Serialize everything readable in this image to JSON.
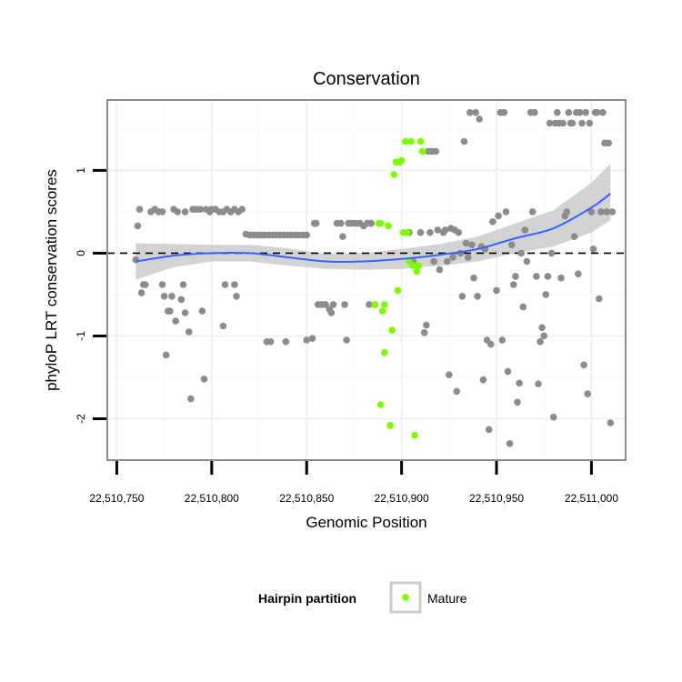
{
  "chart_data": {
    "type": "scatter",
    "title": "Conservation",
    "xlabel": "Genomic Position",
    "ylabel": "phyloP LRT conservation scores",
    "xlim": [
      22510745,
      22511018
    ],
    "ylim": [
      -2.5,
      1.85
    ],
    "x_ticks": [
      {
        "value": 22510750,
        "label": "22,510,750"
      },
      {
        "value": 22510800,
        "label": "22,510,800"
      },
      {
        "value": 22510850,
        "label": "22,510,850"
      },
      {
        "value": 22510900,
        "label": "22,510,900"
      },
      {
        "value": 22510950,
        "label": "22,510,950"
      },
      {
        "value": 22511000,
        "label": "22,511,000"
      }
    ],
    "y_ticks": [
      {
        "value": -2,
        "label": "-2"
      },
      {
        "value": -1,
        "label": "-1"
      },
      {
        "value": 0,
        "label": "0"
      },
      {
        "value": 1,
        "label": "1"
      }
    ],
    "grid": true,
    "reference_line": {
      "y": 0,
      "style": "dashed"
    },
    "legend": {
      "title": "Hairpin partition",
      "position": "bottom",
      "entries": [
        "Mature"
      ]
    },
    "colors": {
      "other": "#8c8c8c",
      "mature": "#7cfc00",
      "smooth": "#3366ff",
      "band": "#c8c8c8",
      "panel_border": "#8c8c8c"
    },
    "series": [
      {
        "name": "",
        "color": "#8c8c8c",
        "points": [
          [
            22510760,
            -0.08
          ],
          [
            22510761,
            0.33
          ],
          [
            22510762,
            0.53
          ],
          [
            22510763,
            -0.48
          ],
          [
            22510764,
            -0.38
          ],
          [
            22510765,
            -0.38
          ],
          [
            22510768,
            0.5
          ],
          [
            22510770,
            0.53
          ],
          [
            22510772,
            0.5
          ],
          [
            22510774,
            -0.38
          ],
          [
            22510774,
            0.5
          ],
          [
            22510775,
            -0.52
          ],
          [
            22510776,
            -1.23
          ],
          [
            22510777,
            -0.7
          ],
          [
            22510778,
            -0.7
          ],
          [
            22510779,
            -0.52
          ],
          [
            22510780,
            0.53
          ],
          [
            22510781,
            -0.82
          ],
          [
            22510782,
            0.5
          ],
          [
            22510784,
            -0.56
          ],
          [
            22510785,
            -0.38
          ],
          [
            22510786,
            0.5
          ],
          [
            22510786,
            -0.72
          ],
          [
            22510788,
            -0.95
          ],
          [
            22510789,
            -1.76
          ],
          [
            22510790,
            0.53
          ],
          [
            22510792,
            0.53
          ],
          [
            22510794,
            0.53
          ],
          [
            22510795,
            -0.7
          ],
          [
            22510796,
            -1.52
          ],
          [
            22510797,
            0.53
          ],
          [
            22510799,
            0.5
          ],
          [
            22510800,
            0.53
          ],
          [
            22510802,
            0.53
          ],
          [
            22510804,
            0.5
          ],
          [
            22510806,
            -0.88
          ],
          [
            22510806,
            0.5
          ],
          [
            22510807,
            -0.38
          ],
          [
            22510808,
            0.53
          ],
          [
            22510810,
            0.5
          ],
          [
            22510812,
            -0.38
          ],
          [
            22510812,
            0.53
          ],
          [
            22510813,
            -0.52
          ],
          [
            22510814,
            0.5
          ],
          [
            22510816,
            0.53
          ],
          [
            22510818,
            0.23
          ],
          [
            22510820,
            0.22
          ],
          [
            22510822,
            0.22
          ],
          [
            22510824,
            0.22
          ],
          [
            22510826,
            0.22
          ],
          [
            22510828,
            0.22
          ],
          [
            22510829,
            -1.07
          ],
          [
            22510830,
            0.22
          ],
          [
            22510831,
            -1.07
          ],
          [
            22510832,
            0.22
          ],
          [
            22510834,
            0.22
          ],
          [
            22510836,
            0.22
          ],
          [
            22510838,
            0.22
          ],
          [
            22510839,
            -1.07
          ],
          [
            22510840,
            0.22
          ],
          [
            22510842,
            0.22
          ],
          [
            22510844,
            0.22
          ],
          [
            22510846,
            0.22
          ],
          [
            22510848,
            0.22
          ],
          [
            22510850,
            -1.05
          ],
          [
            22510850,
            0.22
          ],
          [
            22510853,
            -1.03
          ],
          [
            22510854,
            0.36
          ],
          [
            22510855,
            0.36
          ],
          [
            22510856,
            -0.62
          ],
          [
            22510858,
            -0.62
          ],
          [
            22510860,
            -0.62
          ],
          [
            22510862,
            -0.68
          ],
          [
            22510863,
            -0.72
          ],
          [
            22510864,
            -0.62
          ],
          [
            22510866,
            0.36
          ],
          [
            22510868,
            0.36
          ],
          [
            22510869,
            0.2
          ],
          [
            22510870,
            -0.62
          ],
          [
            22510871,
            -1.05
          ],
          [
            22510872,
            0.36
          ],
          [
            22510874,
            0.36
          ],
          [
            22510876,
            0.36
          ],
          [
            22510878,
            0.36
          ],
          [
            22510880,
            0.33
          ],
          [
            22510882,
            0.36
          ],
          [
            22510883,
            -0.62
          ],
          [
            22510884,
            0.36
          ],
          [
            22510886,
            -0.62
          ],
          [
            22510904,
            0.25
          ],
          [
            22510906,
            -0.1
          ],
          [
            22510910,
            0.25
          ],
          [
            22510912,
            -0.96
          ],
          [
            22510913,
            -0.87
          ],
          [
            22510914,
            1.23
          ],
          [
            22510915,
            0.25
          ],
          [
            22510916,
            1.23
          ],
          [
            22510917,
            -0.1
          ],
          [
            22510918,
            1.23
          ],
          [
            22510919,
            0.28
          ],
          [
            22510920,
            -0.2
          ],
          [
            22510922,
            0.25
          ],
          [
            22510923,
            0.28
          ],
          [
            22510924,
            -0.1
          ],
          [
            22510925,
            -1.47
          ],
          [
            22510926,
            0.3
          ],
          [
            22510927,
            -0.05
          ],
          [
            22510928,
            0.28
          ],
          [
            22510929,
            -1.67
          ],
          [
            22510930,
            0.25
          ],
          [
            22510931,
            0.0
          ],
          [
            22510932,
            -0.52
          ],
          [
            22510933,
            1.35
          ],
          [
            22510934,
            0.12
          ],
          [
            22510935,
            -0.05
          ],
          [
            22510936,
            1.7
          ],
          [
            22510937,
            0.1
          ],
          [
            22510938,
            -0.3
          ],
          [
            22510939,
            1.7
          ],
          [
            22510940,
            -0.52
          ],
          [
            22510941,
            1.62
          ],
          [
            22510942,
            0.08
          ],
          [
            22510943,
            -1.53
          ],
          [
            22510944,
            0.05
          ],
          [
            22510945,
            -1.05
          ],
          [
            22510946,
            -2.13
          ],
          [
            22510947,
            -1.1
          ],
          [
            22510948,
            0.38
          ],
          [
            22510950,
            -0.45
          ],
          [
            22510951,
            0.45
          ],
          [
            22510952,
            1.7
          ],
          [
            22510953,
            -1.05
          ],
          [
            22510954,
            1.7
          ],
          [
            22510955,
            0.5
          ],
          [
            22510956,
            -1.43
          ],
          [
            22510957,
            -2.3
          ],
          [
            22510958,
            0.1
          ],
          [
            22510959,
            -0.38
          ],
          [
            22510960,
            -0.28
          ],
          [
            22510961,
            -1.8
          ],
          [
            22510962,
            -1.57
          ],
          [
            22510963,
            0.0
          ],
          [
            22510964,
            -0.65
          ],
          [
            22510965,
            0.28
          ],
          [
            22510966,
            -0.1
          ],
          [
            22510968,
            1.7
          ],
          [
            22510969,
            0.5
          ],
          [
            22510970,
            1.7
          ],
          [
            22510971,
            -0.28
          ],
          [
            22510972,
            -1.58
          ],
          [
            22510973,
            -1.07
          ],
          [
            22510974,
            -0.9
          ],
          [
            22510975,
            -1.0
          ],
          [
            22510976,
            -0.5
          ],
          [
            22510977,
            -0.28
          ],
          [
            22510978,
            1.57
          ],
          [
            22510979,
            0.0
          ],
          [
            22510980,
            -1.98
          ],
          [
            22510981,
            1.57
          ],
          [
            22510982,
            1.7
          ],
          [
            22510983,
            1.57
          ],
          [
            22510984,
            -0.3
          ],
          [
            22510985,
            1.57
          ],
          [
            22510986,
            0.45
          ],
          [
            22510987,
            0.5
          ],
          [
            22510988,
            1.7
          ],
          [
            22510989,
            1.57
          ],
          [
            22510990,
            1.57
          ],
          [
            22510991,
            0.2
          ],
          [
            22510992,
            1.7
          ],
          [
            22510993,
            -0.25
          ],
          [
            22510994,
            1.7
          ],
          [
            22510995,
            1.57
          ],
          [
            22510996,
            -1.35
          ],
          [
            22510997,
            1.7
          ],
          [
            22510998,
            -1.7
          ],
          [
            22510999,
            1.57
          ],
          [
            22511000,
            0.5
          ],
          [
            22511001,
            0.05
          ],
          [
            22511002,
            1.7
          ],
          [
            22511003,
            1.7
          ],
          [
            22511004,
            -0.55
          ],
          [
            22511005,
            0.5
          ],
          [
            22511006,
            1.7
          ],
          [
            22511007,
            1.33
          ],
          [
            22511008,
            0.5
          ],
          [
            22511009,
            1.33
          ],
          [
            22511010,
            -2.05
          ],
          [
            22511011,
            0.5
          ]
        ]
      },
      {
        "name": "Mature",
        "color": "#7cfc00",
        "points": [
          [
            22510886,
            -0.62
          ],
          [
            22510888,
            0.36
          ],
          [
            22510889,
            0.36
          ],
          [
            22510890,
            -0.7
          ],
          [
            22510891,
            -1.2
          ],
          [
            22510891,
            -0.62
          ],
          [
            22510893,
            0.33
          ],
          [
            22510894,
            -2.08
          ],
          [
            22510895,
            -0.93
          ],
          [
            22510896,
            0.95
          ],
          [
            22510897,
            1.1
          ],
          [
            22510898,
            -0.45
          ],
          [
            22510899,
            1.1
          ],
          [
            22510900,
            1.12
          ],
          [
            22510901,
            0.25
          ],
          [
            22510902,
            1.35
          ],
          [
            22510903,
            0.25
          ],
          [
            22510904,
            -0.1
          ],
          [
            22510905,
            1.35
          ],
          [
            22510906,
            -0.15
          ],
          [
            22510907,
            -2.2
          ],
          [
            22510908,
            -0.22
          ],
          [
            22510909,
            -0.15
          ],
          [
            22510910,
            1.35
          ],
          [
            22510911,
            1.23
          ],
          [
            22510889,
            -1.83
          ]
        ]
      }
    ],
    "smooth_fit": {
      "x": [
        22510760,
        22510780,
        22510800,
        22510820,
        22510840,
        22510860,
        22510880,
        22510900,
        22510920,
        22510940,
        22510960,
        22510980,
        22511000,
        22511010
      ],
      "y": [
        -0.1,
        -0.03,
        0.0,
        0.0,
        -0.05,
        -0.1,
        -0.1,
        -0.07,
        -0.02,
        0.05,
        0.18,
        0.3,
        0.55,
        0.72
      ],
      "lower": [
        -0.32,
        -0.17,
        -0.1,
        -0.1,
        -0.15,
        -0.19,
        -0.2,
        -0.19,
        -0.15,
        -0.1,
        0.0,
        0.08,
        0.25,
        0.4
      ],
      "upper": [
        0.12,
        0.11,
        0.1,
        0.1,
        0.06,
        -0.01,
        0.0,
        0.05,
        0.11,
        0.2,
        0.36,
        0.52,
        0.85,
        1.08
      ]
    }
  }
}
